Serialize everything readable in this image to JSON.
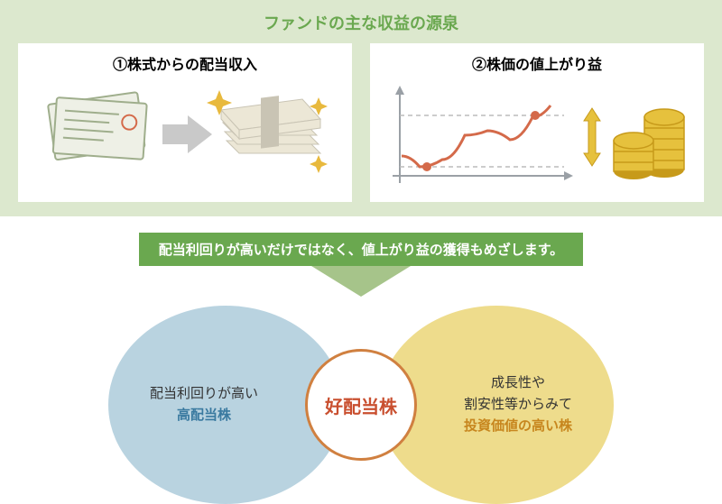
{
  "colors": {
    "green_dark": "#6aa84f",
    "green_mid": "#a6c48a",
    "green_bg": "#dce8ce",
    "banner_bg": "#6aa84f",
    "arrow_fill": "#a6c48a",
    "venn_left_fill": "#b9d3e0",
    "venn_right_fill": "#eedc8c",
    "venn_center_border": "#d08040",
    "venn_center_text": "#c94f2f",
    "left_strong": "#3a7aa0",
    "right_strong": "#c7861e",
    "text_black": "#333333",
    "chart_axis": "#9aa0a6",
    "chart_line": "#d46a4a",
    "chart_dash": "#bcbcbc",
    "coin_fill": "#e6c13d",
    "coin_edge": "#c79a1a",
    "cert_fill": "#eef0e6",
    "cert_edge": "#9fae8c",
    "cash_fill": "#ece7d6",
    "cash_band": "#c9c4b4",
    "sparkle": "#e8b93d",
    "panel_arrow": "#c9c9c9"
  },
  "title": "ファンドの主な収益の源泉",
  "panel1": {
    "title": "①株式からの配当収入"
  },
  "panel2": {
    "title": "②株価の値上がり益",
    "chart": {
      "type": "line",
      "points": [
        [
          10,
          78
        ],
        [
          30,
          90
        ],
        [
          55,
          82
        ],
        [
          80,
          55
        ],
        [
          105,
          50
        ],
        [
          130,
          60
        ],
        [
          155,
          35
        ],
        [
          175,
          22
        ]
      ],
      "dots": [
        [
          38,
          90
        ],
        [
          158,
          33
        ]
      ],
      "dash_y": [
        90,
        33
      ],
      "xlim": [
        0,
        190
      ],
      "ylim": [
        0,
        110
      ]
    }
  },
  "banner": "配当利回りが高いだけではなく、値上がり益の獲得もめざします。",
  "venn": {
    "left": {
      "line1": "配当利回りが高い",
      "line2": "高配当株"
    },
    "right": {
      "line1": "成長性や",
      "line2": "割安性等からみて",
      "line3": "投資価値の高い株"
    },
    "center": "好配当株"
  }
}
